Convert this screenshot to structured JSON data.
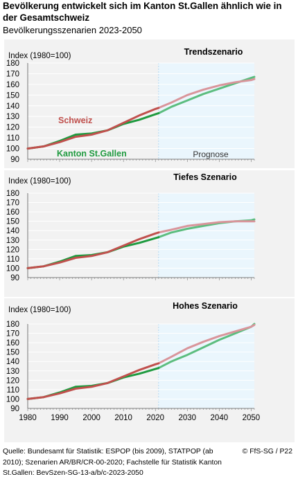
{
  "header": {
    "title": "Bevölkerung entwickelt sich im Kanton St.Gallen ähnlich wie in der Gesamtschweiz",
    "subtitle": "Bevölkerungsszenarien 2023-2050"
  },
  "footer": {
    "source": "Quelle: Bundesamt für Statistik: ESPOP (bis 2009), STATPOP (ab 2010); Szenarien AR/BR/CR-00-2020; Fachstelle für Statistik Kanton St.Gallen: BevSzen-SG-13-a/b/c-2023-2050",
    "credit": "© FfS-SG / P22"
  },
  "colors": {
    "background": "#f2f2f2",
    "forecast_area": "#eaf6fd",
    "schweiz": "#c0504d",
    "schweiz_forecast": "#d9959b",
    "st_gallen": "#1f9a3f",
    "st_gallen_forecast": "#5cbd7f",
    "grid": "#ffffff"
  },
  "chart_data": [
    {
      "type": "line",
      "title": "Trendszenario",
      "ylabel": "Index (1980=100)",
      "ylim": [
        90,
        180
      ],
      "yticks": [
        90,
        100,
        110,
        120,
        130,
        140,
        150,
        160,
        170,
        180
      ],
      "xlim": [
        1980,
        2051
      ],
      "forecast_start": 2021,
      "forecast_label": "Prognose",
      "series_labels": [
        "Schweiz",
        "Kanton St.Gallen"
      ],
      "series": [
        {
          "name": "Schweiz",
          "x": [
            1980,
            1985,
            1990,
            1995,
            2000,
            2005,
            2010,
            2015,
            2020,
            2021,
            2025,
            2030,
            2035,
            2040,
            2045,
            2050,
            2051
          ],
          "values": [
            100,
            102,
            106,
            111,
            113,
            117,
            124,
            131,
            137,
            138,
            143,
            150,
            155,
            159,
            162,
            164,
            165
          ]
        },
        {
          "name": "Kanton St.Gallen",
          "x": [
            1980,
            1985,
            1990,
            1995,
            2000,
            2005,
            2010,
            2015,
            2020,
            2021,
            2025,
            2030,
            2035,
            2040,
            2045,
            2050,
            2051
          ],
          "values": [
            100,
            102,
            107,
            113,
            114,
            117,
            123,
            127,
            132,
            133,
            139,
            145,
            151,
            156,
            161,
            166,
            167
          ]
        }
      ]
    },
    {
      "type": "line",
      "title": "Tiefes Szenario",
      "ylabel": "Index (1980=100)",
      "ylim": [
        90,
        180
      ],
      "yticks": [
        90,
        100,
        110,
        120,
        130,
        140,
        150,
        160,
        170,
        180
      ],
      "xlim": [
        1980,
        2051
      ],
      "forecast_start": 2021,
      "series": [
        {
          "name": "Schweiz",
          "x": [
            1980,
            1985,
            1990,
            1995,
            2000,
            2005,
            2010,
            2015,
            2020,
            2021,
            2025,
            2030,
            2035,
            2040,
            2045,
            2050,
            2051
          ],
          "values": [
            100,
            102,
            106,
            111,
            113,
            117,
            124,
            131,
            137,
            138,
            141,
            145,
            147,
            149,
            150,
            150,
            150
          ]
        },
        {
          "name": "Kanton St.Gallen",
          "x": [
            1980,
            1985,
            1990,
            1995,
            2000,
            2005,
            2010,
            2015,
            2020,
            2021,
            2025,
            2030,
            2035,
            2040,
            2045,
            2050,
            2051
          ],
          "values": [
            100,
            102,
            107,
            113,
            114,
            117,
            123,
            127,
            132,
            133,
            138,
            142,
            145,
            148,
            150,
            151,
            152
          ]
        }
      ]
    },
    {
      "type": "line",
      "title": "Hohes Szenario",
      "ylabel": "Index (1980=100)",
      "ylim": [
        90,
        180
      ],
      "yticks": [
        90,
        100,
        110,
        120,
        130,
        140,
        150,
        160,
        170,
        180
      ],
      "xlim": [
        1980,
        2051
      ],
      "xticks": [
        1980,
        1990,
        2000,
        2010,
        2020,
        2030,
        2040,
        2050
      ],
      "forecast_start": 2021,
      "series": [
        {
          "name": "Schweiz",
          "x": [
            1980,
            1985,
            1990,
            1995,
            2000,
            2005,
            2010,
            2015,
            2020,
            2021,
            2025,
            2030,
            2035,
            2040,
            2045,
            2050,
            2051
          ],
          "values": [
            100,
            102,
            106,
            111,
            113,
            117,
            124,
            131,
            137,
            138,
            145,
            154,
            161,
            167,
            172,
            177,
            179
          ]
        },
        {
          "name": "Kanton St.Gallen",
          "x": [
            1980,
            1985,
            1990,
            1995,
            2000,
            2005,
            2010,
            2015,
            2020,
            2021,
            2025,
            2030,
            2035,
            2040,
            2045,
            2050,
            2051
          ],
          "values": [
            100,
            102,
            107,
            113,
            114,
            117,
            123,
            127,
            132,
            133,
            140,
            147,
            155,
            163,
            170,
            177,
            180
          ]
        }
      ]
    }
  ]
}
